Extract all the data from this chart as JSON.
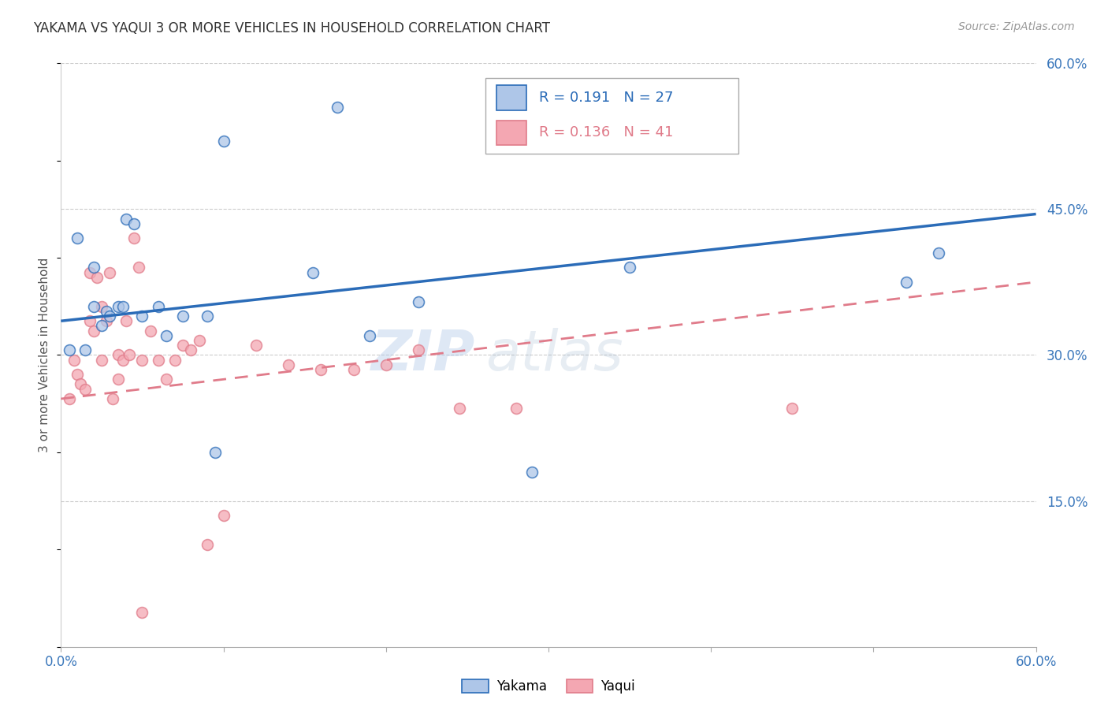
{
  "title": "YAKAMA VS YAQUI 3 OR MORE VEHICLES IN HOUSEHOLD CORRELATION CHART",
  "source": "Source: ZipAtlas.com",
  "ylabel": "3 or more Vehicles in Household",
  "xmin": 0.0,
  "xmax": 0.6,
  "ymin": 0.0,
  "ymax": 0.6,
  "grid_color": "#cccccc",
  "yakama_color": "#aec6e8",
  "yaqui_color": "#f4a7b2",
  "yakama_line_color": "#2b6cb8",
  "yaqui_line_color": "#e07b8a",
  "legend_r_yakama": "0.191",
  "legend_n_yakama": "27",
  "legend_r_yaqui": "0.136",
  "legend_n_yaqui": "41",
  "yakama_line_start_y": 0.335,
  "yakama_line_end_y": 0.445,
  "yaqui_line_start_y": 0.255,
  "yaqui_line_end_y": 0.375,
  "yakama_scatter_x": [
    0.005,
    0.01,
    0.015,
    0.02,
    0.02,
    0.025,
    0.028,
    0.03,
    0.035,
    0.038,
    0.04,
    0.045,
    0.05,
    0.06,
    0.065,
    0.075,
    0.09,
    0.095,
    0.1,
    0.155,
    0.17,
    0.19,
    0.22,
    0.29,
    0.52,
    0.54,
    0.35
  ],
  "yakama_scatter_y": [
    0.305,
    0.42,
    0.305,
    0.35,
    0.39,
    0.33,
    0.345,
    0.34,
    0.35,
    0.35,
    0.44,
    0.435,
    0.34,
    0.35,
    0.32,
    0.34,
    0.34,
    0.2,
    0.52,
    0.385,
    0.555,
    0.32,
    0.355,
    0.18,
    0.375,
    0.405,
    0.39
  ],
  "yaqui_scatter_x": [
    0.005,
    0.008,
    0.01,
    0.012,
    0.015,
    0.018,
    0.018,
    0.02,
    0.022,
    0.025,
    0.025,
    0.028,
    0.03,
    0.032,
    0.035,
    0.035,
    0.038,
    0.04,
    0.042,
    0.045,
    0.048,
    0.05,
    0.055,
    0.06,
    0.065,
    0.07,
    0.075,
    0.08,
    0.085,
    0.09,
    0.1,
    0.12,
    0.14,
    0.16,
    0.18,
    0.2,
    0.22,
    0.245,
    0.28,
    0.45,
    0.05
  ],
  "yaqui_scatter_y": [
    0.255,
    0.295,
    0.28,
    0.27,
    0.265,
    0.335,
    0.385,
    0.325,
    0.38,
    0.35,
    0.295,
    0.335,
    0.385,
    0.255,
    0.275,
    0.3,
    0.295,
    0.335,
    0.3,
    0.42,
    0.39,
    0.295,
    0.325,
    0.295,
    0.275,
    0.295,
    0.31,
    0.305,
    0.315,
    0.105,
    0.135,
    0.31,
    0.29,
    0.285,
    0.285,
    0.29,
    0.305,
    0.245,
    0.245,
    0.245,
    0.035
  ],
  "watermark_zip": "ZIP",
  "watermark_atlas": "atlas",
  "marker_size": 100,
  "marker_edge_width": 1.2
}
